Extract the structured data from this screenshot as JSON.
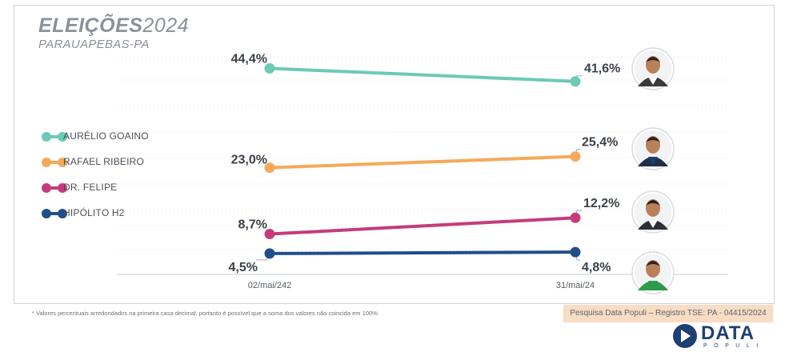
{
  "header": {
    "title_bold": "ELEIÇÕES",
    "title_year": "2024",
    "subtitle": "PARAUAPEBAS-PA"
  },
  "chart_data": {
    "type": "line",
    "x": [
      "02/mai/242",
      "31/mai/24"
    ],
    "ylim": [
      0,
      50
    ],
    "grid": true,
    "legend_position": "left",
    "series": [
      {
        "name": "AURÉLIO GOAINO",
        "values": [
          44.4,
          41.6
        ],
        "labels": [
          "44,4%",
          "41,6%"
        ],
        "color": "#6ccab5",
        "avatar": "avatar-aurelio-goaino"
      },
      {
        "name": "RAFAEL RIBEIRO",
        "values": [
          23.0,
          25.4
        ],
        "labels": [
          "23,0%",
          "25,4%"
        ],
        "color": "#f5a95a",
        "avatar": "avatar-rafael-ribeiro"
      },
      {
        "name": "DR. FELIPE",
        "values": [
          8.7,
          12.2
        ],
        "labels": [
          "8,7%",
          "12,2%"
        ],
        "color": "#c43c7c",
        "avatar": "avatar-dr-felipe"
      },
      {
        "name": "HIPÓLITO H2",
        "values": [
          4.5,
          4.8
        ],
        "labels": [
          "4,5%",
          "4,8%"
        ],
        "color": "#1f4e8a",
        "avatar": "avatar-hipolito-h2"
      }
    ]
  },
  "legend": {
    "items": [
      {
        "label": "AURÉLIO GOAINO",
        "color": "#6ccab5"
      },
      {
        "label": "RAFAEL RIBEIRO",
        "color": "#f5a95a"
      },
      {
        "label": "DR. FELIPE",
        "color": "#c43c7c"
      },
      {
        "label": "HIPÓLITO H2",
        "color": "#1f4e8a"
      }
    ]
  },
  "footer": {
    "footnote": "* Valores percentuais arredondados na primeira casa decimal, portanto é possível que a soma dos valores não coincida em 100%.",
    "source": "Pesquisa Data Populi – Registro TSE: PA - 04415/2024"
  },
  "logo": {
    "name": "DATA",
    "sub": "POPULI",
    "icon": "data-populi-logo-icon"
  }
}
